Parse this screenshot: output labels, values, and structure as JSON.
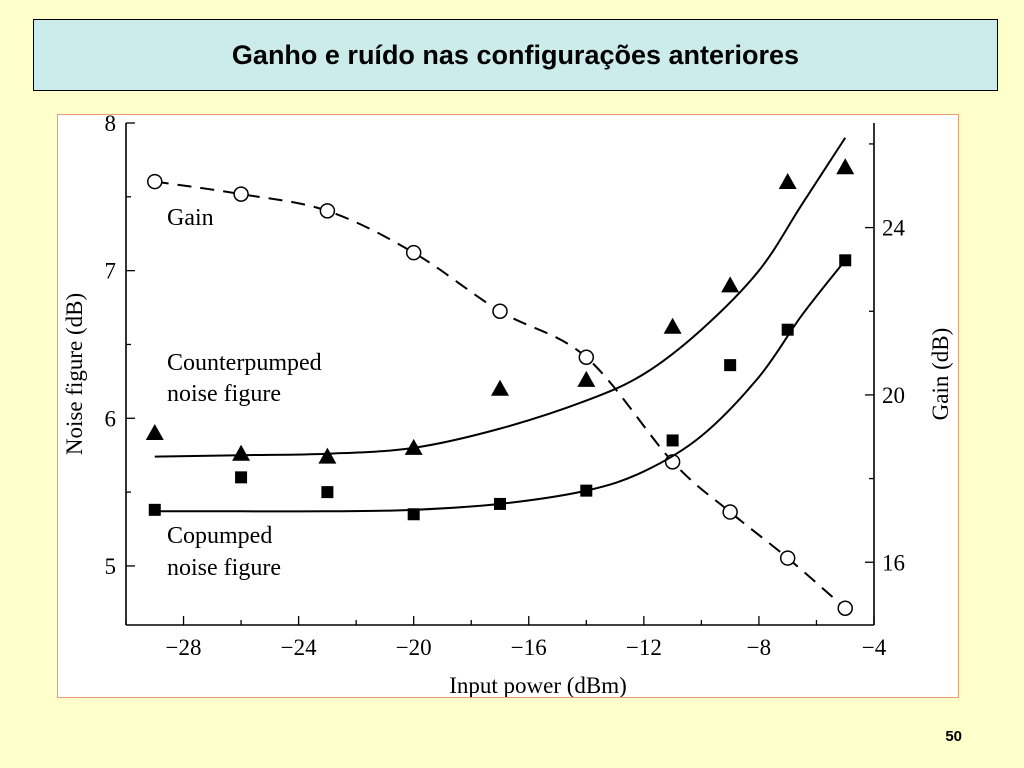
{
  "slide": {
    "title": "Ganho e ruído nas configurações anteriores",
    "page_number": "50",
    "background_color": "#FFFFCC",
    "title_box_color": "#CCECEC"
  },
  "chart_data": {
    "type": "scatter",
    "title": "",
    "xlabel": "Input power (dBm)",
    "ylabel_left": "Noise figure (dB)",
    "ylabel_right": "Gain (dB)",
    "xlim": [
      -30,
      -4
    ],
    "ylim_left": [
      4.6,
      8
    ],
    "ylim_right": [
      14.5,
      26.5
    ],
    "x_ticks": [
      -28,
      -24,
      -20,
      -16,
      -12,
      -8,
      -4
    ],
    "x_tick_labels": [
      "−28",
      "−24",
      "−20",
      "−16",
      "−12",
      "−8",
      "−4"
    ],
    "y_left_ticks": [
      5,
      6,
      7,
      8
    ],
    "y_left_tick_labels": [
      "5",
      "6",
      "7",
      "8"
    ],
    "y_right_ticks": [
      16,
      20,
      24
    ],
    "y_right_tick_labels": [
      "16",
      "20",
      "24"
    ],
    "grid": false,
    "annotations": {
      "gain": "Gain",
      "counterpumped_line1": "Counterpumped",
      "counterpumped_line2": "noise figure",
      "copumped_line1": "Copumped",
      "copumped_line2": "noise figure"
    },
    "series": [
      {
        "axis": "right",
        "marker": "open-circle",
        "line": "dashed",
        "points": [
          [
            -29,
            25.1
          ],
          [
            -26,
            24.8
          ],
          [
            -23,
            24.4
          ],
          [
            -20,
            23.4
          ],
          [
            -17,
            22.0
          ],
          [
            -14,
            20.9
          ],
          [
            -11,
            18.4
          ],
          [
            -9,
            17.2
          ],
          [
            -7,
            16.1
          ],
          [
            -5,
            14.9
          ]
        ]
      },
      {
        "axis": "left",
        "marker": "filled-triangle",
        "line": "solid-fit",
        "points": [
          [
            -29,
            5.9
          ],
          [
            -26,
            5.76
          ],
          [
            -23,
            5.74
          ],
          [
            -20,
            5.8
          ],
          [
            -17,
            6.2
          ],
          [
            -14,
            6.26
          ],
          [
            -11,
            6.62
          ],
          [
            -9,
            6.9
          ],
          [
            -7,
            7.6
          ],
          [
            -5,
            7.7
          ]
        ],
        "fit": [
          [
            -29,
            5.74
          ],
          [
            -26,
            5.75
          ],
          [
            -23,
            5.76
          ],
          [
            -20,
            5.8
          ],
          [
            -17,
            5.93
          ],
          [
            -14,
            6.12
          ],
          [
            -12,
            6.3
          ],
          [
            -10,
            6.6
          ],
          [
            -8,
            7.0
          ],
          [
            -6.5,
            7.45
          ],
          [
            -5,
            7.9
          ]
        ]
      },
      {
        "axis": "left",
        "marker": "filled-square",
        "line": "solid-fit",
        "points": [
          [
            -29,
            5.38
          ],
          [
            -26,
            5.6
          ],
          [
            -23,
            5.5
          ],
          [
            -20,
            5.35
          ],
          [
            -17,
            5.42
          ],
          [
            -14,
            5.51
          ],
          [
            -11,
            5.85
          ],
          [
            -9,
            6.36
          ],
          [
            -7,
            6.6
          ],
          [
            -5,
            7.07
          ]
        ],
        "fit": [
          [
            -29,
            5.37
          ],
          [
            -26,
            5.37
          ],
          [
            -23,
            5.37
          ],
          [
            -20,
            5.38
          ],
          [
            -17,
            5.42
          ],
          [
            -14,
            5.51
          ],
          [
            -12,
            5.64
          ],
          [
            -10,
            5.88
          ],
          [
            -8,
            6.28
          ],
          [
            -6.5,
            6.7
          ],
          [
            -5,
            7.07
          ]
        ]
      }
    ]
  }
}
